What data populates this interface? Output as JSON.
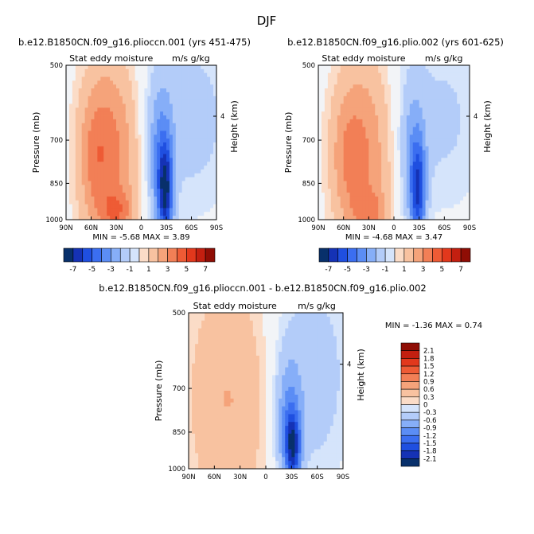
{
  "figure": {
    "title": "DJF",
    "panel_top_left_title": "b.e12.B1850CN.f09_g16.plioccn.001 (yrs 451-475)",
    "panel_top_right_title": "b.e12.B1850CN.f09_g16.plio.002 (yrs 601-625)",
    "panel_bottom_title": "b.e12.B1850CN.f09_g16.plioccn.001 - b.e12.B1850CN.f09_g16.plio.002"
  },
  "colors": {
    "blues": [
      "#08306b",
      "#1532b5",
      "#1f4fe0",
      "#3b6ef0",
      "#5b8df5",
      "#86aef8",
      "#b3ccf9",
      "#d5e4fb"
    ],
    "near_zero": "#f2f4f7",
    "reds": [
      "#fbdcc7",
      "#f8c2a0",
      "#f5a37a",
      "#f27f56",
      "#ee5b35",
      "#e2381c",
      "#c31f10",
      "#8f0d05"
    ]
  },
  "chart_data": [
    {
      "id": "top-left",
      "type": "heatmap",
      "title": "b.e12.B1850CN.f09_g16.plioccn.001 (yrs 451-475)",
      "subtitle_left": "Stat eddy moisture",
      "subtitle_right": "m/s g/kg",
      "ylabel": "Pressure (mb)",
      "ylabel_right": "Height (km)",
      "x_ticks": [
        "90N",
        "60N",
        "30N",
        "0",
        "30S",
        "60S",
        "90S"
      ],
      "y_ticks": [
        "500",
        "700",
        "850",
        "1000"
      ],
      "right_ticks": [
        "4"
      ],
      "stats": "MIN = -5.68  MAX = 3.89",
      "min": -5.68,
      "max": 3.89,
      "legend_labels": [
        "-7",
        "-5",
        "-3",
        "-1",
        "1",
        "3",
        "5",
        "7"
      ],
      "levels": [
        -7,
        -6,
        -5,
        -4,
        -3,
        -2,
        -1,
        0,
        1,
        2,
        3,
        4,
        5,
        6,
        7
      ]
    },
    {
      "id": "top-right",
      "type": "heatmap",
      "title": "b.e12.B1850CN.f09_g16.plio.002 (yrs 601-625)",
      "subtitle_left": "Stat eddy moisture",
      "subtitle_right": "m/s g/kg",
      "ylabel": "Pressure (mb)",
      "ylabel_right": "Height (km)",
      "x_ticks": [
        "90N",
        "60N",
        "30N",
        "0",
        "30S",
        "60S",
        "90S"
      ],
      "y_ticks": [
        "500",
        "700",
        "850",
        "1000"
      ],
      "right_ticks": [
        "4"
      ],
      "stats": "MIN = -4.68  MAX = 3.47",
      "min": -4.68,
      "max": 3.47,
      "legend_labels": [
        "-7",
        "-5",
        "-3",
        "-1",
        "1",
        "3",
        "5",
        "7"
      ],
      "levels": [
        -7,
        -6,
        -5,
        -4,
        -3,
        -2,
        -1,
        0,
        1,
        2,
        3,
        4,
        5,
        6,
        7
      ]
    },
    {
      "id": "bottom",
      "type": "heatmap",
      "title": "b.e12.B1850CN.f09_g16.plioccn.001 - b.e12.B1850CN.f09_g16.plio.002",
      "subtitle_left": "Stat eddy moisture",
      "subtitle_right": "m/s g/kg",
      "ylabel": "Pressure (mb)",
      "ylabel_right": "Height (km)",
      "x_ticks": [
        "90N",
        "60N",
        "30N",
        "0",
        "30S",
        "60S",
        "90S"
      ],
      "y_ticks": [
        "500",
        "700",
        "850",
        "1000"
      ],
      "right_ticks": [
        "4"
      ],
      "stats": "MIN = -1.36   MAX = 0.74",
      "min": -1.36,
      "max": 0.74,
      "legend_labels": [
        "2.1",
        "1.8",
        "1.5",
        "1.2",
        "0.9",
        "0.6",
        "0.3",
        "0",
        "-0.3",
        "-0.6",
        "-0.9",
        "-1.2",
        "-1.5",
        "-1.8",
        "-2.1"
      ],
      "levels": [
        -2.1,
        -1.8,
        -1.5,
        -1.2,
        -0.9,
        -0.6,
        -0.3,
        0,
        0.3,
        0.6,
        0.9,
        1.2,
        1.5,
        1.8,
        2.1
      ]
    }
  ]
}
